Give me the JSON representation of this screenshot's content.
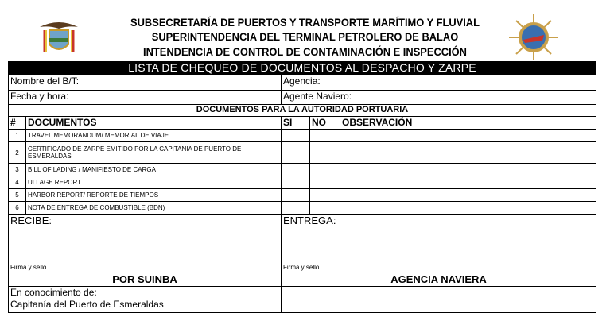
{
  "header": {
    "line1": "SUBSECRETARÍA DE PUERTOS Y TRANSPORTE MARÍTIMO Y FLUVIAL",
    "line2": "SUPERINTENDENCIA DEL TERMINAL PETROLERO DE BALAO",
    "line3": "INTENDENCIA DE CONTROL DE CONTAMINACIÓN E INSPECCIÓN",
    "left_logo": "ecuador-coat-of-arms",
    "right_logo": "ship-wheel-emblem"
  },
  "title": "LISTA DE CHEQUEO DE DOCUMENTOS AL DESPACHO Y ZARPE",
  "fields": {
    "nombre": "Nombre del B/T:",
    "agencia": "Agencia:",
    "fecha": "Fecha y hora:",
    "agente": "Agente Naviero:"
  },
  "section": "DOCUMENTOS PARA LA AUTORIDAD PORTUARIA",
  "columns": {
    "num": "#",
    "doc": "DOCUMENTOS",
    "si": "SI",
    "no": "NO",
    "obs": "OBSERVACIÓN"
  },
  "rows": [
    {
      "n": "1",
      "doc": "TRAVEL MEMORANDUM/ MEMORIAL DE VIAJE"
    },
    {
      "n": "2",
      "doc": "CERTIFICADO DE ZARPE EMITIDO POR LA CAPITANIA DE PUERTO DE",
      "doc2": "ESMERALDAS"
    },
    {
      "n": "3",
      "doc": "BILL OF LADING / MANIFIESTO DE CARGA"
    },
    {
      "n": "4",
      "doc": "ULLAGE REPORT"
    },
    {
      "n": "5",
      "doc": "HARBOR REPORT/ REPORTE DE TIEMPOS"
    },
    {
      "n": "6",
      "doc": "NOTA DE ENTREGA DE COMBUSTIBLE (BDN)"
    }
  ],
  "signatures": {
    "recibe": "RECIBE:",
    "entrega": "ENTREGA:",
    "firma_left": "Firma y sello",
    "firma_right": "Firma y sello",
    "por": "POR SUINBA",
    "agencia": "AGENCIA NAVIERA",
    "conoc1": "En conocimiento de:",
    "conoc2": "Capitanía del Puerto de Esmeraldas"
  }
}
